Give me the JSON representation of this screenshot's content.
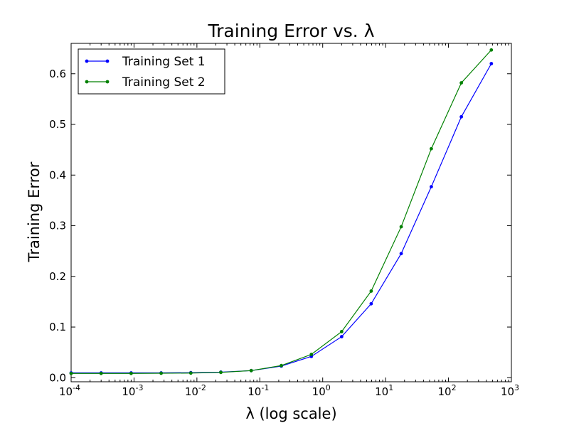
{
  "chart_data": {
    "type": "line",
    "title": "Training Error vs. λ",
    "xlabel": "λ (log scale)",
    "ylabel": "Training Error",
    "xscale": "log",
    "xlim": [
      0.0001,
      1000
    ],
    "ylim": [
      -0.008,
      0.66
    ],
    "x_ticks": [
      {
        "base": "10",
        "exp": "-4",
        "value": 0.0001
      },
      {
        "base": "10",
        "exp": "-3",
        "value": 0.001
      },
      {
        "base": "10",
        "exp": "-2",
        "value": 0.01
      },
      {
        "base": "10",
        "exp": "-1",
        "value": 0.1
      },
      {
        "base": "10",
        "exp": "0",
        "value": 1
      },
      {
        "base": "10",
        "exp": "1",
        "value": 10
      },
      {
        "base": "10",
        "exp": "2",
        "value": 100
      },
      {
        "base": "10",
        "exp": "3",
        "value": 1000
      }
    ],
    "y_ticks": [
      "0.0",
      "0.1",
      "0.2",
      "0.3",
      "0.4",
      "0.5",
      "0.6"
    ],
    "grid": false,
    "legend_position": "top-left",
    "x": [
      0.0001,
      0.0003,
      0.0009,
      0.0027,
      0.008,
      0.024,
      0.073,
      0.22,
      0.66,
      2.0,
      5.9,
      17.7,
      53.3,
      160,
      480
    ],
    "series": [
      {
        "name": "Training Set 1",
        "color": "#0000ff",
        "values": [
          0.0095,
          0.0095,
          0.0095,
          0.0095,
          0.01,
          0.011,
          0.014,
          0.023,
          0.042,
          0.081,
          0.146,
          0.245,
          0.377,
          0.515,
          0.62
        ]
      },
      {
        "name": "Training Set 2",
        "color": "#008000",
        "values": [
          0.0085,
          0.0085,
          0.0085,
          0.0088,
          0.0092,
          0.0105,
          0.014,
          0.024,
          0.046,
          0.091,
          0.171,
          0.298,
          0.452,
          0.582,
          0.647
        ]
      }
    ]
  }
}
